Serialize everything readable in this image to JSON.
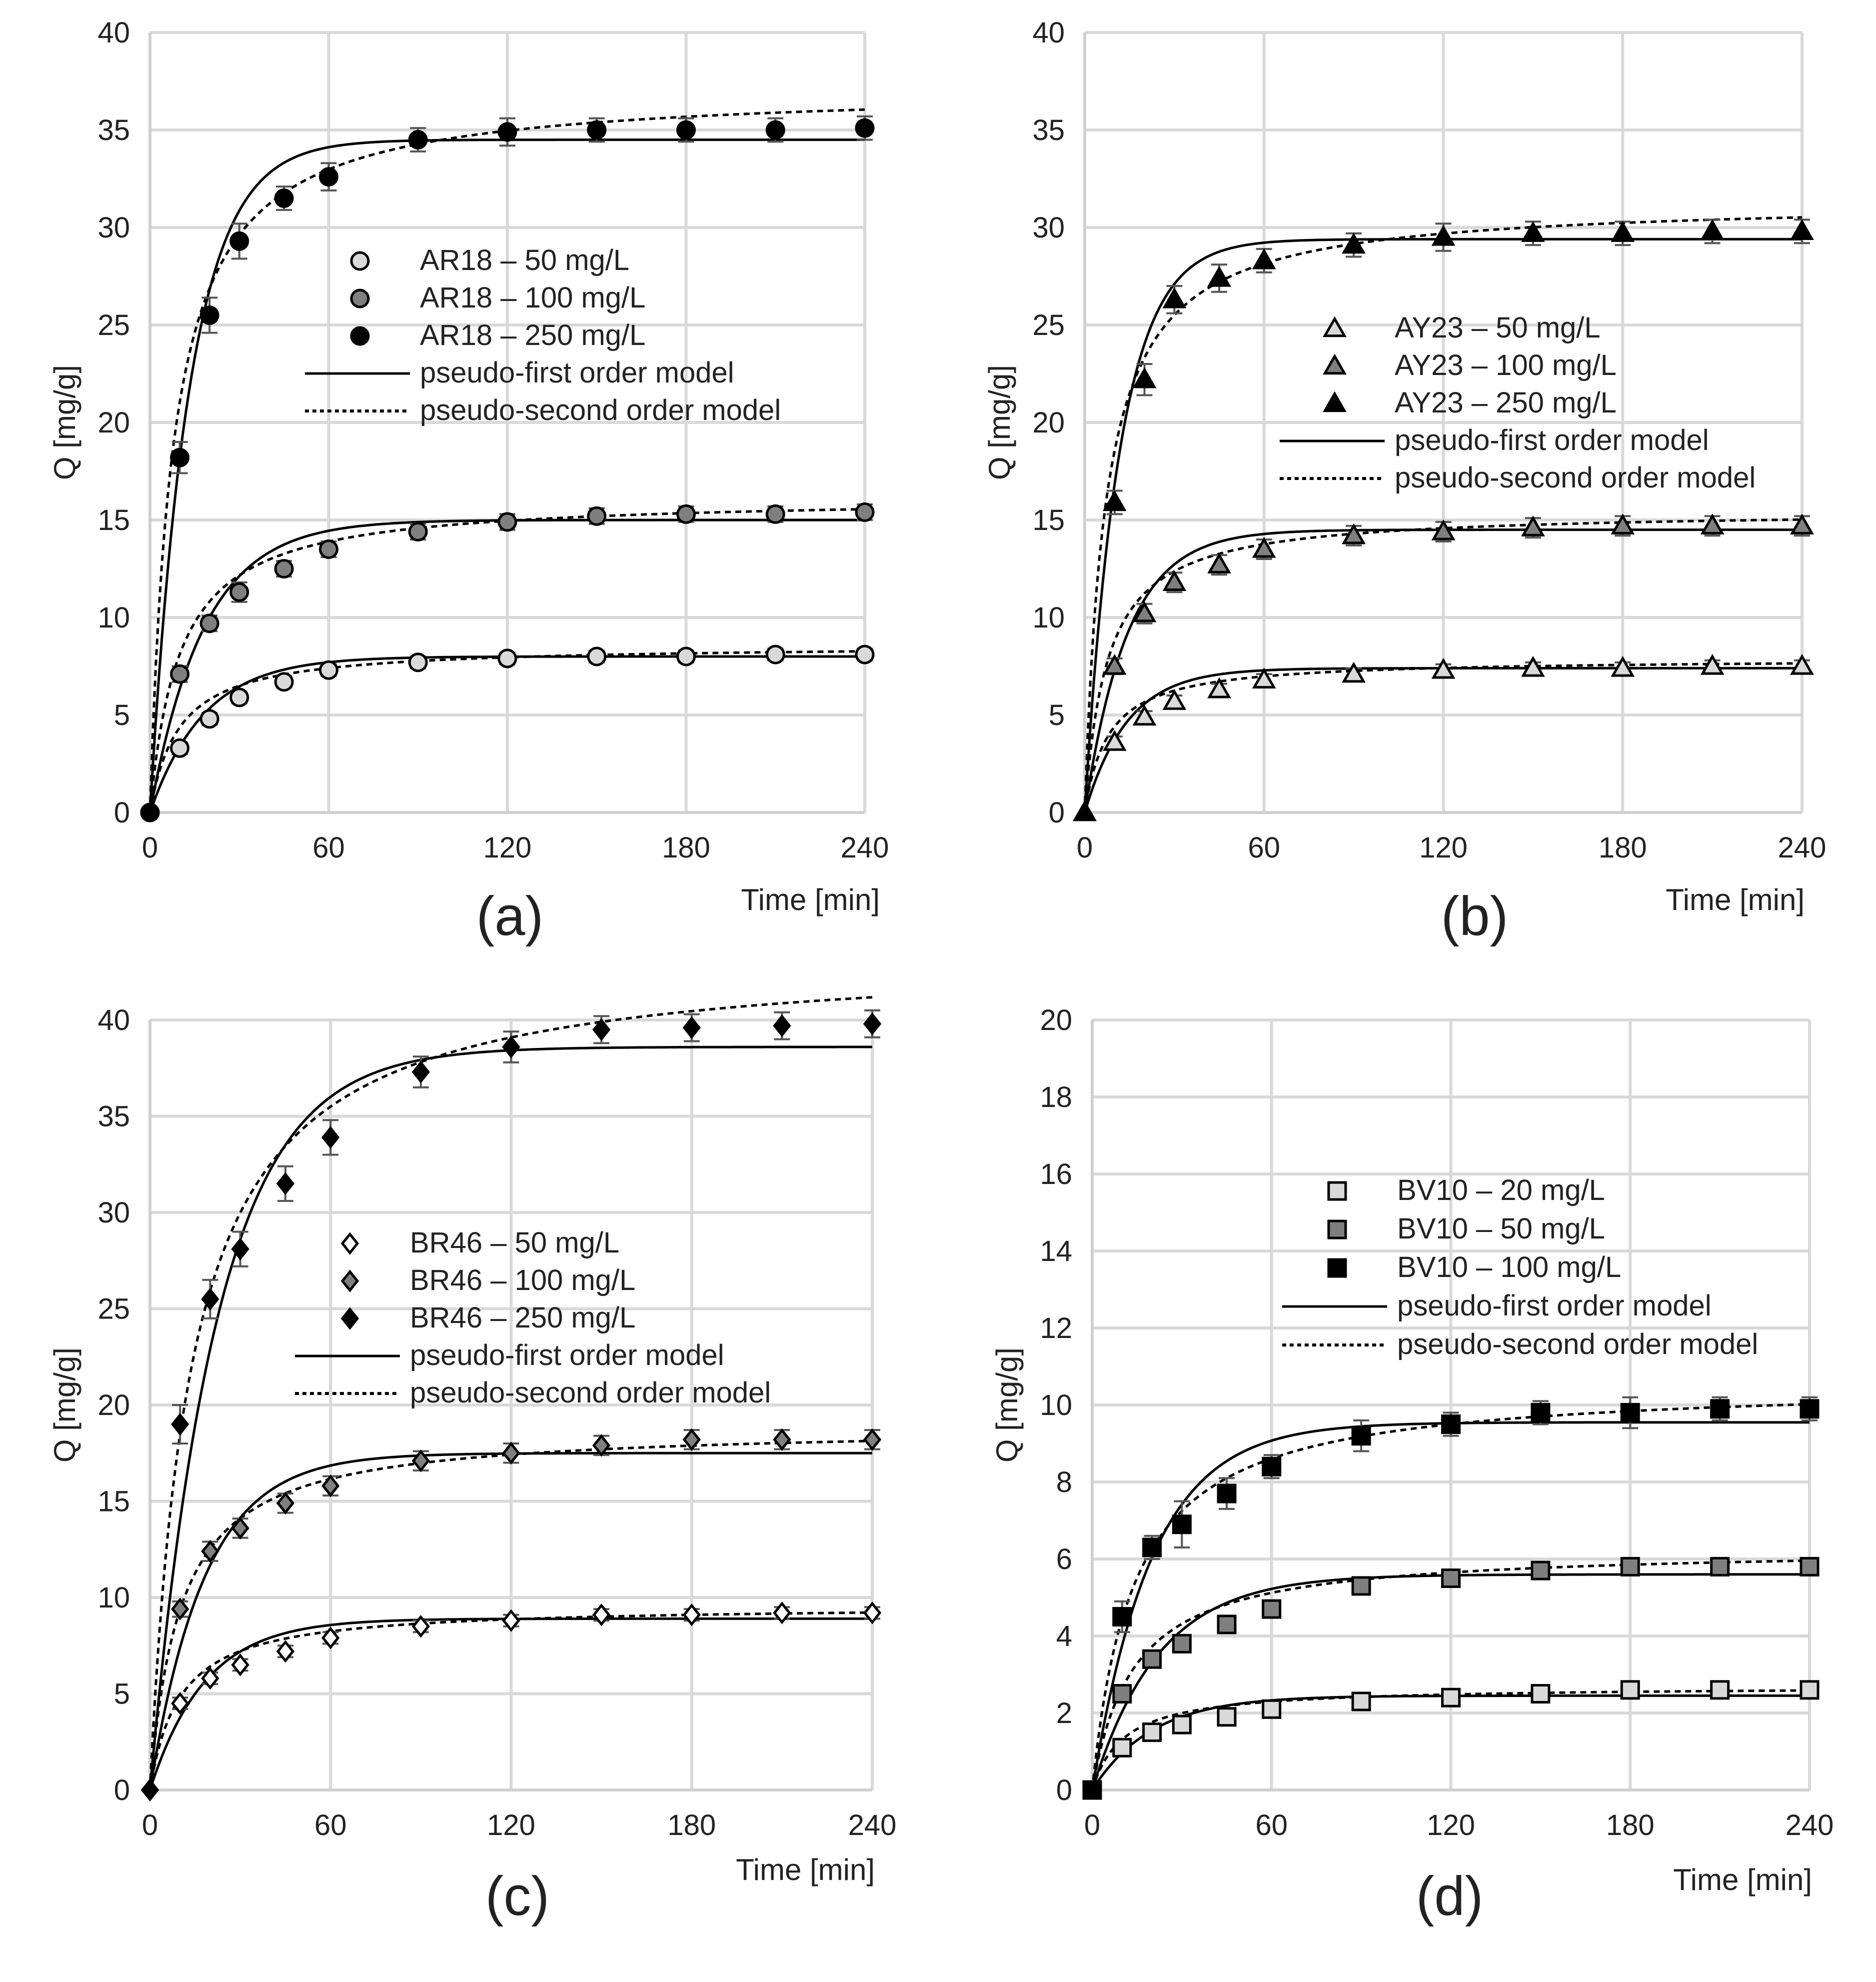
{
  "chart_data": [
    {
      "type": "scatter",
      "panel_label": "(a)",
      "xlabel": "Time [min]",
      "ylabel": "Q [mg/g]",
      "xlim": [
        0,
        240
      ],
      "ylim": [
        0,
        40
      ],
      "xticks": [
        "0",
        "60",
        "120",
        "180",
        "240"
      ],
      "yticks": [
        "0",
        "5",
        "10",
        "15",
        "20",
        "25",
        "30",
        "35",
        "40"
      ],
      "grid": true,
      "legend_position": "center-right",
      "marker": "circle",
      "x": [
        0,
        10,
        20,
        30,
        45,
        60,
        90,
        120,
        150,
        180,
        210,
        240
      ],
      "series": [
        {
          "name": "AR18 – 50 mg/L",
          "fill": "#d9d9d9",
          "values": [
            0,
            3.3,
            4.8,
            5.9,
            6.7,
            7.3,
            7.7,
            7.9,
            8.0,
            8.0,
            8.1,
            8.1
          ],
          "errors": [
            0,
            0.3,
            0.3,
            0.3,
            0.3,
            0.3,
            0.3,
            0.3,
            0.3,
            0.3,
            0.3,
            0.3
          ],
          "pfo": {
            "qe": 8.0,
            "k": 0.055
          },
          "pso": {
            "qe": 8.6,
            "k": 0.012
          }
        },
        {
          "name": "AR18 – 100 mg/L",
          "fill": "#7f7f7f",
          "values": [
            0,
            7.1,
            9.7,
            11.3,
            12.5,
            13.5,
            14.4,
            14.9,
            15.2,
            15.3,
            15.3,
            15.4
          ],
          "errors": [
            0,
            0.4,
            0.4,
            0.5,
            0.4,
            0.4,
            0.4,
            0.4,
            0.4,
            0.4,
            0.4,
            0.4
          ],
          "pfo": {
            "qe": 15.0,
            "k": 0.055
          },
          "pso": {
            "qe": 16.2,
            "k": 0.0062
          }
        },
        {
          "name": "AR18 – 250 mg/L",
          "fill": "#000000",
          "values": [
            0,
            18.2,
            25.5,
            29.3,
            31.5,
            32.6,
            34.5,
            34.9,
            35.0,
            35.0,
            35.0,
            35.1
          ],
          "errors": [
            0,
            0.8,
            0.9,
            0.9,
            0.6,
            0.7,
            0.6,
            0.7,
            0.6,
            0.6,
            0.6,
            0.6
          ],
          "pfo": {
            "qe": 34.5,
            "k": 0.075
          },
          "pso": {
            "qe": 37.2,
            "k": 0.0035
          }
        }
      ],
      "legend": {
        "pfo_label": "pseudo-first order model",
        "pso_label": "pseudo-second order model"
      }
    },
    {
      "type": "scatter",
      "panel_label": "(b)",
      "xlabel": "Time [min]",
      "ylabel": "Q [mg/g]",
      "xlim": [
        0,
        240
      ],
      "ylim": [
        0,
        40
      ],
      "xticks": [
        "0",
        "60",
        "120",
        "180",
        "240"
      ],
      "yticks": [
        "0",
        "5",
        "10",
        "15",
        "20",
        "25",
        "30",
        "35",
        "40"
      ],
      "grid": true,
      "legend_position": "center-right",
      "marker": "triangle",
      "x": [
        0,
        10,
        20,
        30,
        45,
        60,
        90,
        120,
        150,
        180,
        210,
        240
      ],
      "series": [
        {
          "name": "AY23 – 50 mg/L",
          "fill": "#d9d9d9",
          "values": [
            0,
            3.6,
            4.9,
            5.7,
            6.3,
            6.8,
            7.1,
            7.3,
            7.4,
            7.4,
            7.5,
            7.5
          ],
          "errors": [
            0,
            0.3,
            0.3,
            0.3,
            0.3,
            0.3,
            0.3,
            0.3,
            0.3,
            0.3,
            0.3,
            0.3
          ],
          "pfo": {
            "qe": 7.4,
            "k": 0.07
          },
          "pso": {
            "qe": 7.9,
            "k": 0.016
          }
        },
        {
          "name": "AY23 – 100 mg/L",
          "fill": "#7f7f7f",
          "values": [
            0,
            7.5,
            10.2,
            11.8,
            12.7,
            13.5,
            14.2,
            14.4,
            14.6,
            14.7,
            14.7,
            14.7
          ],
          "errors": [
            0,
            0.4,
            0.5,
            0.5,
            0.5,
            0.5,
            0.5,
            0.5,
            0.5,
            0.5,
            0.5,
            0.5
          ],
          "pfo": {
            "qe": 14.5,
            "k": 0.07
          },
          "pso": {
            "qe": 15.5,
            "k": 0.0085
          }
        },
        {
          "name": "AY23 – 250 mg/L",
          "fill": "#000000",
          "values": [
            0,
            15.9,
            22.2,
            26.3,
            27.4,
            28.3,
            29.1,
            29.5,
            29.7,
            29.7,
            29.8,
            29.8
          ],
          "errors": [
            0,
            0.6,
            0.8,
            0.7,
            0.7,
            0.6,
            0.6,
            0.7,
            0.6,
            0.6,
            0.6,
            0.6
          ],
          "pfo": {
            "qe": 29.4,
            "k": 0.085
          },
          "pso": {
            "qe": 31.4,
            "k": 0.0046
          }
        }
      ],
      "legend": {
        "pfo_label": "pseudo-first order model",
        "pso_label": "pseudo-second order model"
      }
    },
    {
      "type": "scatter",
      "panel_label": "(c)",
      "xlabel": "Time [min]",
      "ylabel": "Q [mg/g]",
      "xlim": [
        0,
        240
      ],
      "ylim": [
        0,
        40
      ],
      "xticks": [
        "0",
        "60",
        "120",
        "180",
        "240"
      ],
      "yticks": [
        "0",
        "5",
        "10",
        "15",
        "20",
        "25",
        "30",
        "35",
        "40"
      ],
      "grid": true,
      "legend_position": "center-right",
      "marker": "diamond",
      "x": [
        0,
        10,
        20,
        30,
        45,
        60,
        90,
        120,
        150,
        180,
        210,
        240
      ],
      "series": [
        {
          "name": "BR46 – 50 mg/L",
          "fill": "#ffffff",
          "values": [
            0,
            4.5,
            5.8,
            6.5,
            7.2,
            7.9,
            8.5,
            8.8,
            9.1,
            9.1,
            9.2,
            9.2
          ],
          "errors": [
            0,
            0.3,
            0.3,
            0.3,
            0.3,
            0.3,
            0.3,
            0.3,
            0.3,
            0.3,
            0.3,
            0.3
          ],
          "pfo": {
            "qe": 8.9,
            "k": 0.055
          },
          "pso": {
            "qe": 9.6,
            "k": 0.0105
          }
        },
        {
          "name": "BR46 – 100 mg/L",
          "fill": "#7f7f7f",
          "values": [
            0,
            9.4,
            12.4,
            13.6,
            14.9,
            15.8,
            17.1,
            17.5,
            17.9,
            18.2,
            18.2,
            18.2
          ],
          "errors": [
            0,
            0.4,
            0.5,
            0.5,
            0.5,
            0.5,
            0.5,
            0.5,
            0.5,
            0.5,
            0.5,
            0.5
          ],
          "pfo": {
            "qe": 17.5,
            "k": 0.055
          },
          "pso": {
            "qe": 18.9,
            "k": 0.0052
          }
        },
        {
          "name": "BR46 – 250 mg/L",
          "fill": "#000000",
          "values": [
            0,
            19.0,
            25.5,
            28.1,
            31.5,
            33.9,
            37.3,
            38.6,
            39.5,
            39.6,
            39.7,
            39.8
          ],
          "errors": [
            0,
            1.0,
            1.0,
            0.9,
            0.9,
            0.9,
            0.8,
            0.8,
            0.7,
            0.7,
            0.7,
            0.7
          ],
          "pfo": {
            "qe": 38.6,
            "k": 0.045
          },
          "pso": {
            "qe": 43.5,
            "k": 0.0017
          }
        }
      ],
      "legend": {
        "pfo_label": "pseudo-first order model",
        "pso_label": "pseudo-second order model"
      }
    },
    {
      "type": "scatter",
      "panel_label": "(d)",
      "xlabel": "Time [min]",
      "ylabel": "Q [mg/g]",
      "xlim": [
        0,
        240
      ],
      "ylim": [
        0,
        20
      ],
      "xticks": [
        "0",
        "60",
        "120",
        "180",
        "240"
      ],
      "yticks": [
        "0",
        "2",
        "4",
        "6",
        "8",
        "10",
        "12",
        "14",
        "16",
        "18",
        "20"
      ],
      "grid": true,
      "legend_position": "top-right",
      "marker": "square",
      "x": [
        0,
        10,
        20,
        30,
        45,
        60,
        90,
        120,
        150,
        180,
        210,
        240
      ],
      "series": [
        {
          "name": "BV10 – 20 mg/L",
          "fill": "#d9d9d9",
          "values": [
            0,
            1.1,
            1.5,
            1.7,
            1.9,
            2.1,
            2.3,
            2.4,
            2.5,
            2.6,
            2.6,
            2.6
          ],
          "errors": [
            0,
            0.15,
            0.1,
            0.1,
            0.1,
            0.1,
            0.1,
            0.1,
            0.1,
            0.1,
            0.1,
            0.1
          ],
          "pfo": {
            "qe": 2.45,
            "k": 0.05
          },
          "pso": {
            "qe": 2.7,
            "k": 0.035
          }
        },
        {
          "name": "BV10 – 50 mg/L",
          "fill": "#7f7f7f",
          "values": [
            0,
            2.5,
            3.4,
            3.8,
            4.3,
            4.7,
            5.3,
            5.5,
            5.7,
            5.8,
            5.8,
            5.8
          ],
          "errors": [
            0,
            0.2,
            0.2,
            0.2,
            0.2,
            0.2,
            0.2,
            0.2,
            0.2,
            0.2,
            0.2,
            0.2
          ],
          "pfo": {
            "qe": 5.6,
            "k": 0.045
          },
          "pso": {
            "qe": 6.3,
            "k": 0.0115
          }
        },
        {
          "name": "BV10 – 100 mg/L",
          "fill": "#000000",
          "values": [
            0,
            4.5,
            6.3,
            6.9,
            7.7,
            8.4,
            9.2,
            9.5,
            9.8,
            9.8,
            9.9,
            9.9
          ],
          "errors": [
            0,
            0.4,
            0.3,
            0.6,
            0.4,
            0.3,
            0.4,
            0.3,
            0.3,
            0.4,
            0.3,
            0.3
          ],
          "pfo": {
            "qe": 9.55,
            "k": 0.05
          },
          "pso": {
            "qe": 10.6,
            "k": 0.0068
          }
        }
      ],
      "legend": {
        "pfo_label": "pseudo-first order model",
        "pso_label": "pseudo-second order model"
      }
    }
  ]
}
